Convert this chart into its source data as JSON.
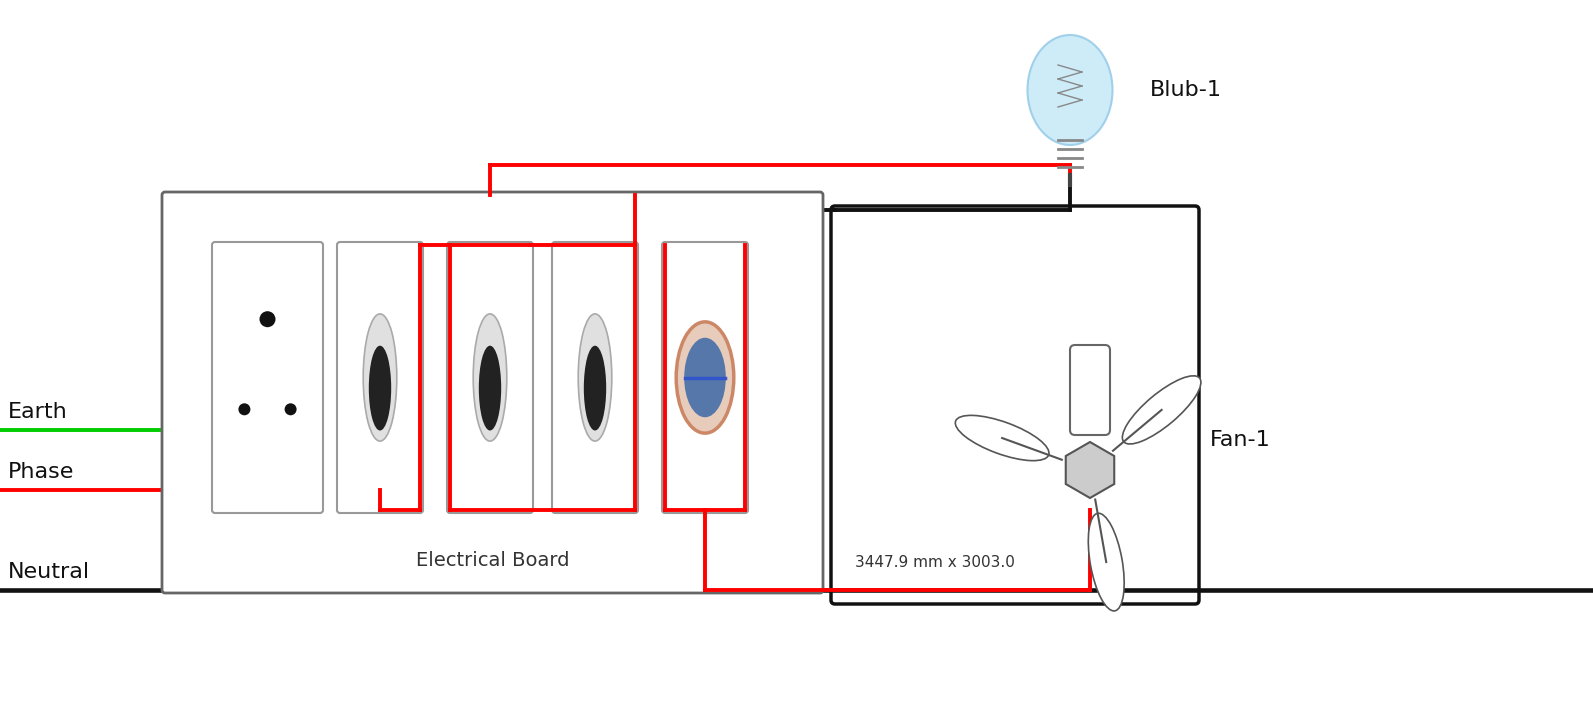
{
  "bg_color": "#ffffff",
  "labels": {
    "earth": "Earth",
    "phase": "Phase",
    "neutral": "Neutral",
    "electrical_board": "Electrical Board",
    "blub": "Blub-1",
    "fan": "Fan-1",
    "dimensions": "3447.9 mm x 3003.0"
  },
  "colors": {
    "earth_wire": "#00cc00",
    "phase_wire": "#ff0000",
    "neutral_wire": "#111111",
    "board_border": "#666666",
    "switch_border": "#888888",
    "bulb_glass": "#c8eaf8",
    "bulb_glass_edge": "#99cce8",
    "bulb_base": "#999999",
    "fan_line": "#444444"
  },
  "wire_lw": 2.8,
  "board_lw": 2.0,
  "label_fontsize": 14,
  "dim_fontsize": 11,
  "side_label_fontsize": 16
}
